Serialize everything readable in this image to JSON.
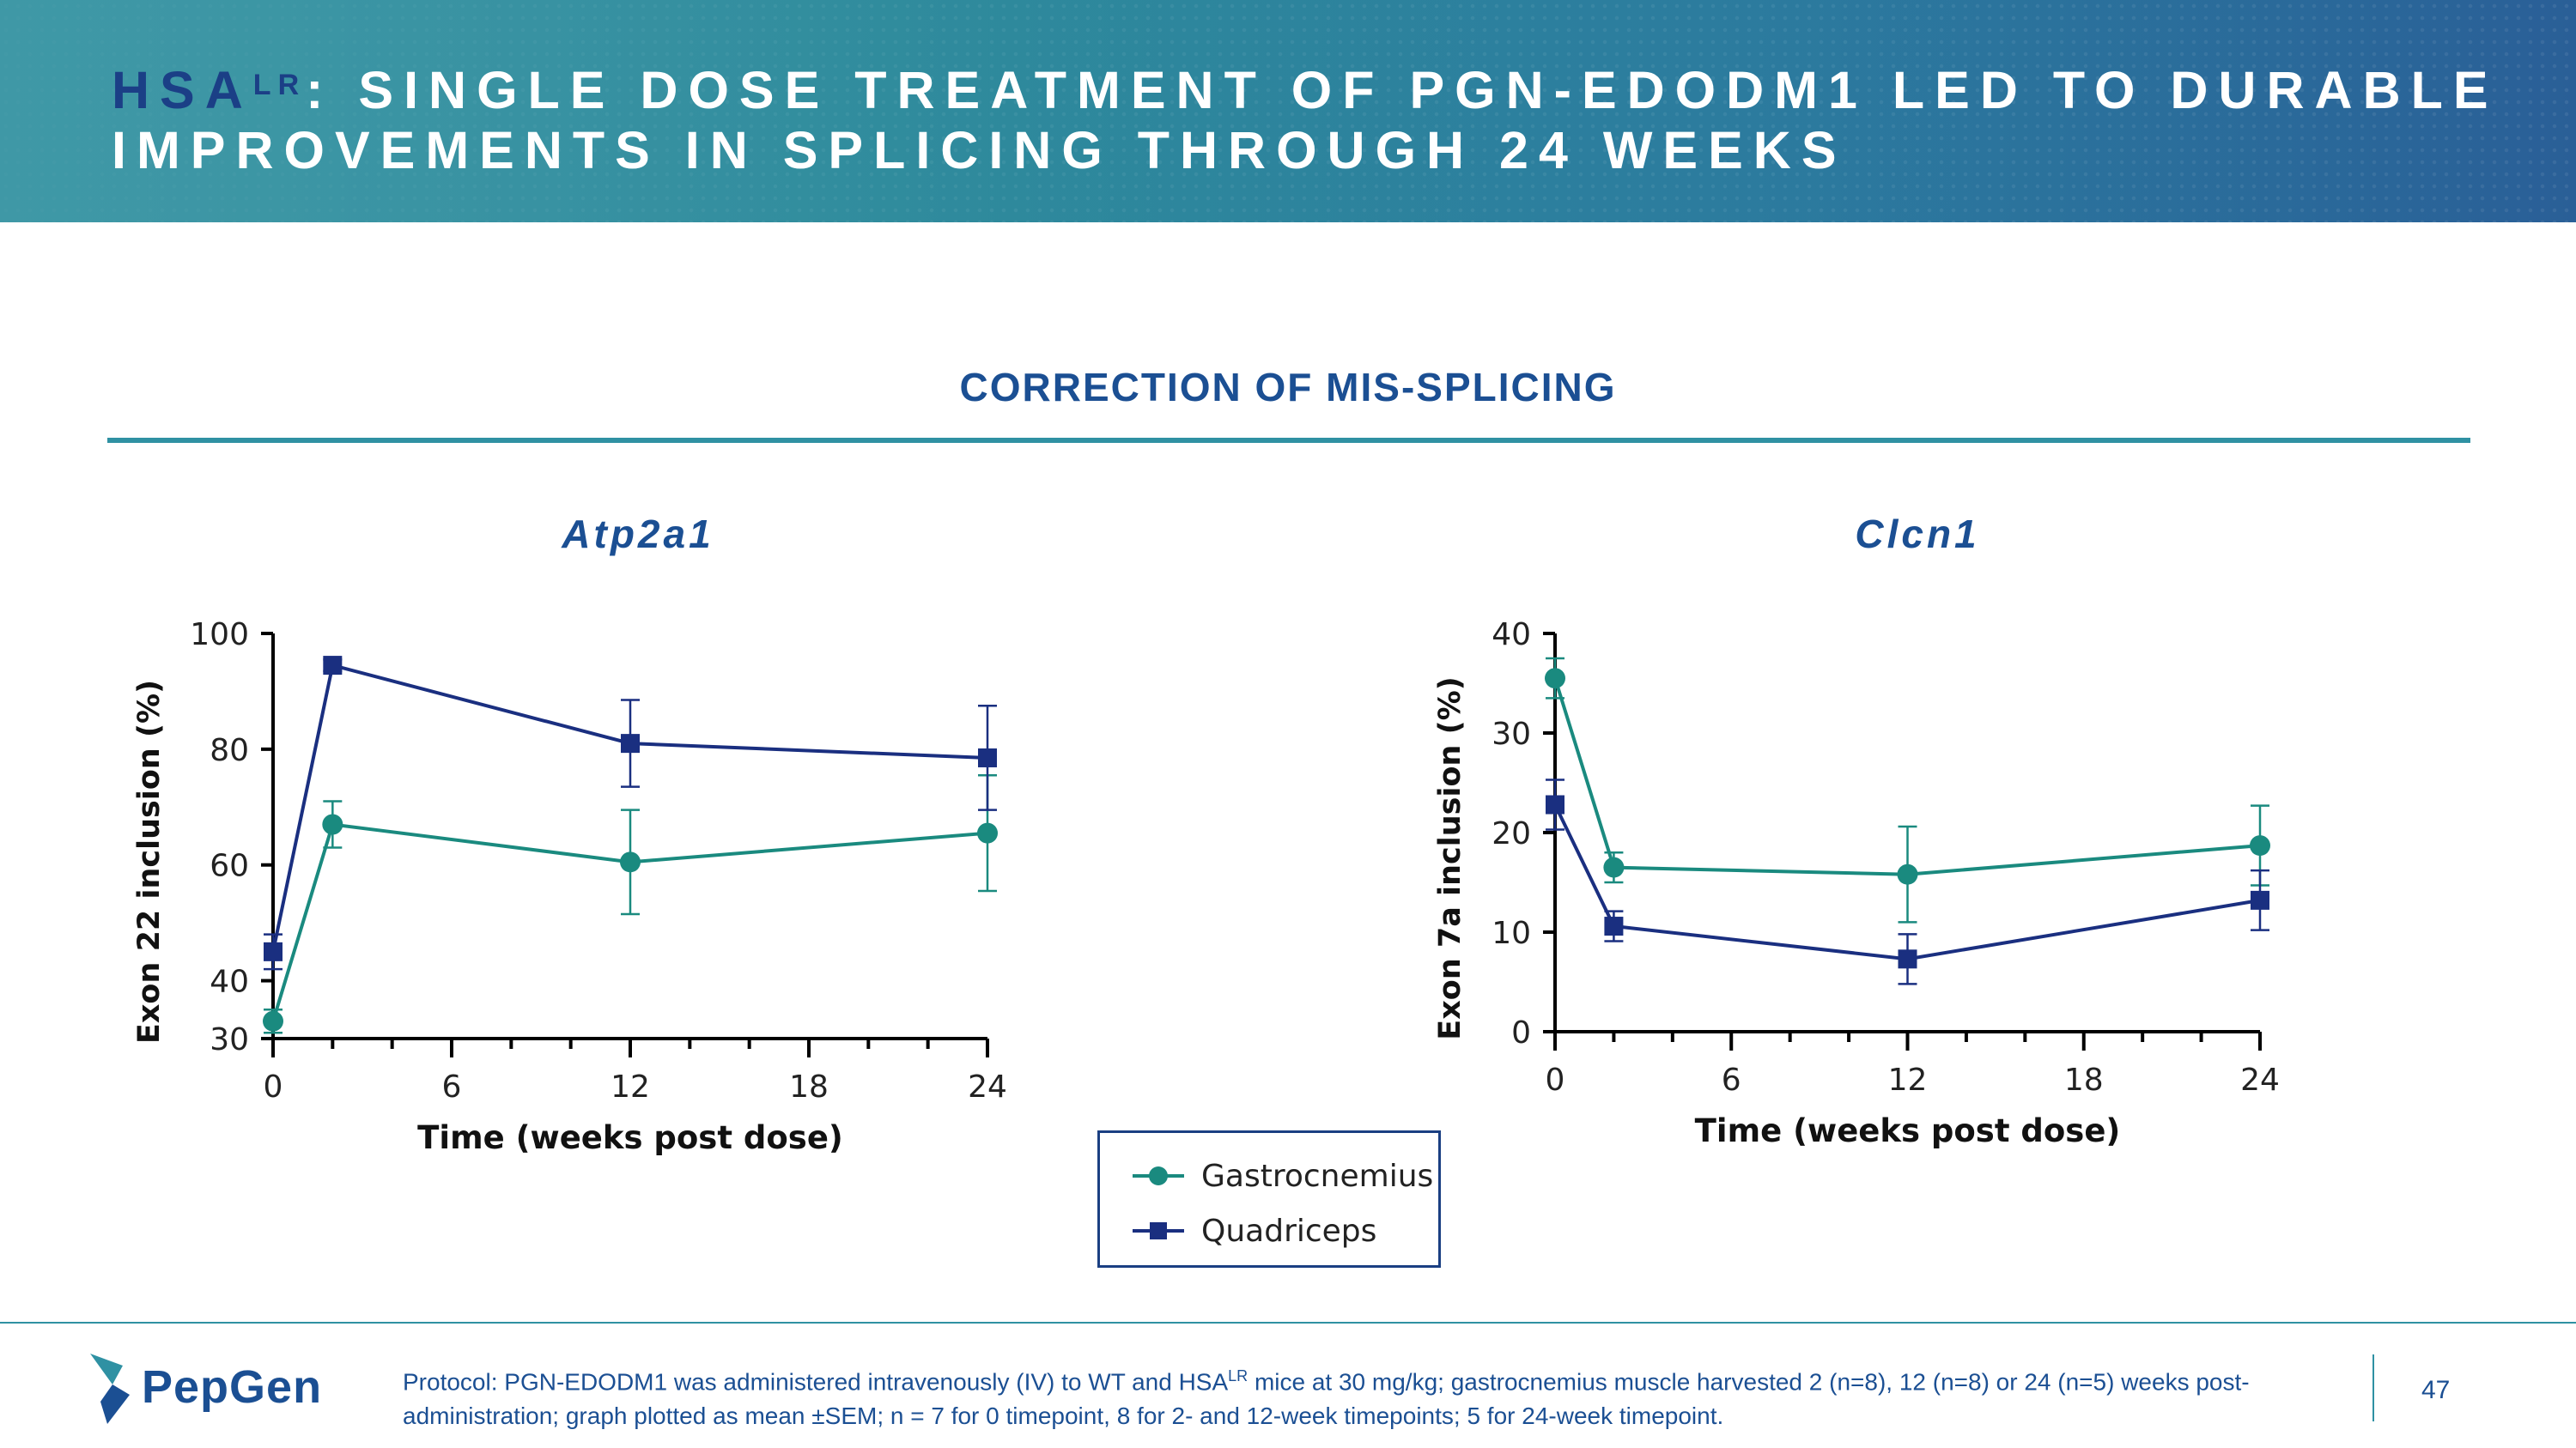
{
  "header": {
    "title_prefix": "HSA",
    "title_sup": "LR",
    "title_rest": ": SINGLE DOSE TREATMENT OF PGN-EDODM1 LED TO DURABLE IMPROVEMENTS IN SPLICING THROUGH 24 WEEKS"
  },
  "section_title": "CORRECTION OF MIS-SPLICING",
  "legend": {
    "items": [
      {
        "label": "Gastrocnemius",
        "marker": "circle",
        "color": "#1a8a7f"
      },
      {
        "label": "Quadriceps",
        "marker": "square",
        "color": "#1a2f80"
      }
    ]
  },
  "chart_data": [
    {
      "type": "line",
      "title": "Atp2a1",
      "xlabel": "Time (weeks post dose)",
      "ylabel": "Exon 22 inclusion (%)",
      "xlim": [
        0,
        24
      ],
      "ylim": [
        30,
        100
      ],
      "xticks": [
        0,
        6,
        12,
        18,
        24
      ],
      "yticks": [
        30,
        40,
        60,
        80,
        100
      ],
      "series": [
        {
          "name": "Gastrocnemius",
          "color": "#1a8a7f",
          "marker": "circle",
          "x": [
            0,
            2,
            12,
            24
          ],
          "y": [
            33,
            67,
            60.5,
            65.5
          ],
          "err": [
            2,
            4,
            9,
            10
          ]
        },
        {
          "name": "Quadriceps",
          "color": "#1a2f80",
          "marker": "square",
          "x": [
            0,
            2,
            12,
            24
          ],
          "y": [
            45,
            94.5,
            81,
            78.5
          ],
          "err": [
            3,
            1,
            7.5,
            9
          ]
        }
      ]
    },
    {
      "type": "line",
      "title": "Clcn1",
      "xlabel": "Time (weeks post dose)",
      "ylabel": "Exon 7a inclusion (%)",
      "xlim": [
        0,
        24
      ],
      "ylim": [
        0,
        40
      ],
      "xticks": [
        0,
        6,
        12,
        18,
        24
      ],
      "yticks": [
        0,
        10,
        20,
        30,
        40
      ],
      "series": [
        {
          "name": "Gastrocnemius",
          "color": "#1a8a7f",
          "marker": "circle",
          "x": [
            0,
            2,
            12,
            24
          ],
          "y": [
            35.5,
            16.5,
            15.8,
            18.7
          ],
          "err": [
            2,
            1.5,
            4.8,
            4
          ]
        },
        {
          "name": "Quadriceps",
          "color": "#1a2f80",
          "marker": "square",
          "x": [
            0,
            2,
            12,
            24
          ],
          "y": [
            22.8,
            10.6,
            7.3,
            13.2
          ],
          "err": [
            2.5,
            1.5,
            2.5,
            3
          ]
        }
      ]
    }
  ],
  "footer": {
    "logo_text": "PepGen",
    "protocol_a": "Protocol: PGN-EDODM1 was administered intravenously (IV) to WT and HSA",
    "protocol_sup": "LR",
    "protocol_b": " mice at 30 mg/kg; gastrocnemius muscle harvested 2 (n=8), 12 (n=8) or 24 (n=5) weeks post-administration; graph plotted as mean ±SEM; n = 7 for 0 timepoint, 8 for 2- and 12-week timepoints; 5 for 24-week timepoint.",
    "page_number": "47"
  }
}
